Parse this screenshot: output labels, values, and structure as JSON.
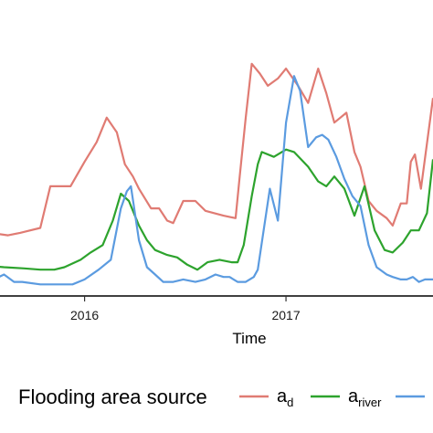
{
  "chart_data": {
    "type": "line",
    "xlabel": "Time",
    "ylabel": "",
    "title": "",
    "x_ticks": [
      {
        "label": "2016",
        "value": 2016.0
      },
      {
        "label": "2017",
        "value": 2017.0
      }
    ],
    "xlim": [
      2015.58,
      2017.73
    ],
    "ylim": [
      0,
      1.2
    ],
    "grid": false,
    "legend": {
      "title": "Flooding area source",
      "placement": "bottom",
      "entries": [
        {
          "series": "a_d",
          "base": "a",
          "sub": "d"
        },
        {
          "series": "a_river",
          "base": "a",
          "sub": "river"
        },
        {
          "series": "a_other",
          "base": "a",
          "sub": ""
        }
      ]
    },
    "series": [
      {
        "key": "a_d",
        "color": "#E07B73",
        "x": [
          2015.45,
          2015.62,
          2015.68,
          2015.78,
          2015.83,
          2015.93,
          2016.0,
          2016.06,
          2016.11,
          2016.16,
          2016.2,
          2016.24,
          2016.27,
          2016.33,
          2016.37,
          2016.41,
          2016.44,
          2016.49,
          2016.55,
          2016.6,
          2016.69,
          2016.75,
          2016.77,
          2016.8,
          2016.83,
          2016.87,
          2016.91,
          2016.96,
          2017.0,
          2017.06,
          2017.11,
          2017.16,
          2017.2,
          2017.24,
          2017.3,
          2017.34,
          2017.37,
          2017.41,
          2017.45,
          2017.5,
          2017.53,
          2017.57,
          2017.6,
          2017.62,
          2017.64,
          2017.67,
          2017.73
        ],
        "y": [
          0.26,
          0.24,
          0.25,
          0.27,
          0.44,
          0.44,
          0.54,
          0.62,
          0.72,
          0.66,
          0.53,
          0.48,
          0.43,
          0.35,
          0.35,
          0.3,
          0.29,
          0.38,
          0.38,
          0.34,
          0.32,
          0.31,
          0.48,
          0.72,
          0.94,
          0.9,
          0.85,
          0.88,
          0.92,
          0.85,
          0.78,
          0.92,
          0.82,
          0.7,
          0.74,
          0.58,
          0.52,
          0.38,
          0.34,
          0.31,
          0.28,
          0.37,
          0.37,
          0.54,
          0.57,
          0.43,
          0.8
        ]
      },
      {
        "key": "a_river",
        "color": "#2DA32D",
        "x": [
          2015.45,
          2015.6,
          2015.7,
          2015.78,
          2015.85,
          2015.9,
          2015.98,
          2016.03,
          2016.09,
          2016.14,
          2016.18,
          2016.22,
          2016.27,
          2016.31,
          2016.35,
          2016.41,
          2016.46,
          2016.51,
          2016.56,
          2016.61,
          2016.67,
          2016.73,
          2016.76,
          2016.79,
          2016.83,
          2016.86,
          2016.88,
          2016.94,
          2017.0,
          2017.04,
          2017.11,
          2017.16,
          2017.2,
          2017.24,
          2017.29,
          2017.34,
          2017.39,
          2017.44,
          2017.49,
          2017.53,
          2017.58,
          2017.62,
          2017.66,
          2017.7,
          2017.73
        ],
        "y": [
          0.12,
          0.11,
          0.105,
          0.1,
          0.1,
          0.11,
          0.14,
          0.17,
          0.2,
          0.3,
          0.41,
          0.38,
          0.28,
          0.22,
          0.18,
          0.16,
          0.15,
          0.12,
          0.1,
          0.13,
          0.14,
          0.13,
          0.13,
          0.2,
          0.4,
          0.53,
          0.58,
          0.56,
          0.59,
          0.58,
          0.52,
          0.46,
          0.44,
          0.48,
          0.43,
          0.32,
          0.44,
          0.26,
          0.18,
          0.17,
          0.21,
          0.26,
          0.26,
          0.33,
          0.55
        ]
      },
      {
        "key": "a_other",
        "color": "#5B9BE0",
        "x": [
          2015.45,
          2015.55,
          2015.6,
          2015.65,
          2015.69,
          2015.78,
          2015.83,
          2015.88,
          2015.94,
          2016.0,
          2016.07,
          2016.13,
          2016.18,
          2016.21,
          2016.23,
          2016.27,
          2016.31,
          2016.35,
          2016.39,
          2016.44,
          2016.49,
          2016.55,
          2016.6,
          2016.65,
          2016.69,
          2016.72,
          2016.74,
          2016.76,
          2016.78,
          2016.8,
          2016.84,
          2016.86,
          2016.88,
          2016.92,
          2016.96,
          2017.0,
          2017.04,
          2017.07,
          2017.11,
          2017.15,
          2017.18,
          2017.21,
          2017.25,
          2017.29,
          2017.33,
          2017.37,
          2017.41,
          2017.45,
          2017.5,
          2017.53,
          2017.57,
          2017.6,
          2017.63,
          2017.66,
          2017.69,
          2017.73
        ],
        "y": [
          0.06,
          0.06,
          0.08,
          0.05,
          0.05,
          0.04,
          0.04,
          0.04,
          0.04,
          0.06,
          0.1,
          0.14,
          0.35,
          0.42,
          0.44,
          0.22,
          0.11,
          0.08,
          0.05,
          0.05,
          0.06,
          0.05,
          0.06,
          0.08,
          0.07,
          0.07,
          0.06,
          0.05,
          0.05,
          0.05,
          0.07,
          0.1,
          0.21,
          0.43,
          0.3,
          0.7,
          0.89,
          0.83,
          0.6,
          0.64,
          0.65,
          0.63,
          0.56,
          0.47,
          0.4,
          0.36,
          0.2,
          0.11,
          0.08,
          0.07,
          0.06,
          0.06,
          0.07,
          0.05,
          0.06,
          0.06
        ]
      }
    ]
  }
}
